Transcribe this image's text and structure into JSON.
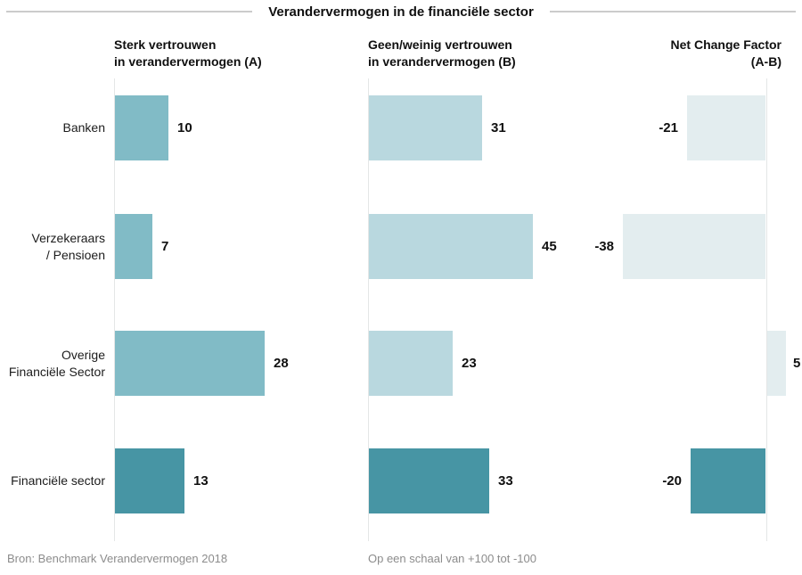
{
  "title": "Verandervermogen in de financiële sector",
  "footer_left": "Bron: Benchmark Verandervermogen 2018",
  "footer_right": "Op een schaal van +100 tot -100",
  "panels": [
    {
      "id": "A",
      "header_lines": [
        "Sterk vertrouwen",
        "in verandervermogen (A)"
      ],
      "align": "left"
    },
    {
      "id": "B",
      "header_lines": [
        "Geen/weinig vertrouwen",
        "in verandervermogen (B)"
      ],
      "align": "left"
    },
    {
      "id": "C",
      "header_lines": [
        "Net Change Factor",
        "(A-B)"
      ],
      "align": "right"
    }
  ],
  "rows": [
    {
      "label_lines": [
        "Banken"
      ],
      "is_total": false
    },
    {
      "label_lines": [
        "Verzekeraars",
        "/ Pensioen"
      ],
      "is_total": false
    },
    {
      "label_lines": [
        "Overige",
        "Financiële Sector"
      ],
      "is_total": false
    },
    {
      "label_lines": [
        "Financiële sector"
      ],
      "is_total": true
    }
  ],
  "colors": {
    "panel_a_bar": "#81bbc6",
    "panel_b_bar": "#b9d8df",
    "panel_c_bar": "#e3edef",
    "total_row_bar": "#4795a4",
    "axis_line": "#e4e6e6",
    "title_rule": "#cbcbcb",
    "footer_text": "#8c8c8c",
    "text": "#101010"
  },
  "chart_data": {
    "type": "bar",
    "orientation": "horizontal",
    "title": "Verandervermogen in de financiële sector",
    "categories": [
      "Banken",
      "Verzekeraars / Pensioen",
      "Overige Financiële Sector",
      "Financiële sector"
    ],
    "series": [
      {
        "name": "Sterk vertrouwen in verandervermogen (A)",
        "values": [
          10,
          7,
          28,
          13
        ]
      },
      {
        "name": "Geen/weinig vertrouwen in verandervermogen (B)",
        "values": [
          31,
          45,
          23,
          33
        ]
      },
      {
        "name": "Net Change Factor (A-B)",
        "values": [
          -21,
          -38,
          5,
          -20
        ]
      }
    ],
    "value_labels": true,
    "gridlines": false,
    "scale_note": "Op een schaal van +100 tot -100",
    "source_note": "Bron: Benchmark Verandervermogen 2018"
  }
}
